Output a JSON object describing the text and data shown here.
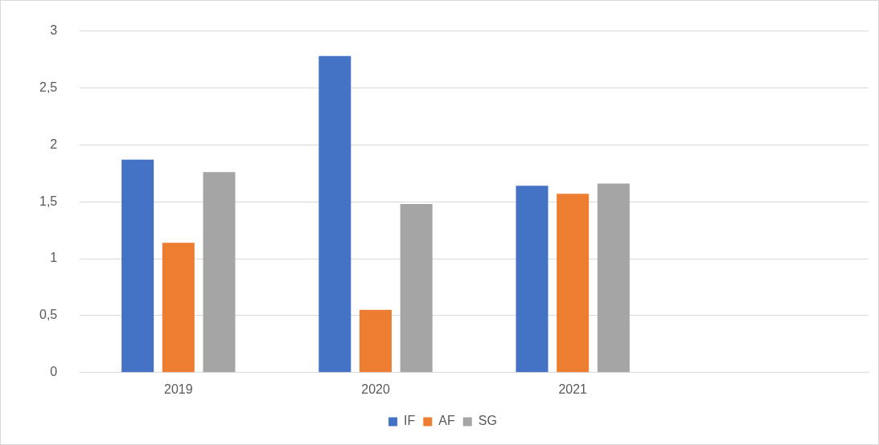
{
  "chart_data": {
    "type": "bar",
    "categories": [
      "2019",
      "2020",
      "2021",
      null
    ],
    "series": [
      {
        "name": "IF",
        "color": "#4472c4",
        "values": [
          1.87,
          2.78,
          1.64,
          null
        ]
      },
      {
        "name": "AF",
        "color": "#ed7d31",
        "values": [
          1.14,
          0.55,
          1.57,
          null
        ]
      },
      {
        "name": "SG",
        "color": "#a5a5a5",
        "values": [
          1.76,
          1.48,
          1.66,
          null
        ]
      }
    ],
    "ylim": [
      0,
      3
    ],
    "yticks": [
      0,
      {
        "value": 0.5,
        "label": "0,5"
      },
      1,
      {
        "value": 1.5,
        "label": "1,5"
      },
      2,
      {
        "value": 2.5,
        "label": "2,5"
      },
      3
    ],
    "grid": "y",
    "legend": "bottom"
  }
}
